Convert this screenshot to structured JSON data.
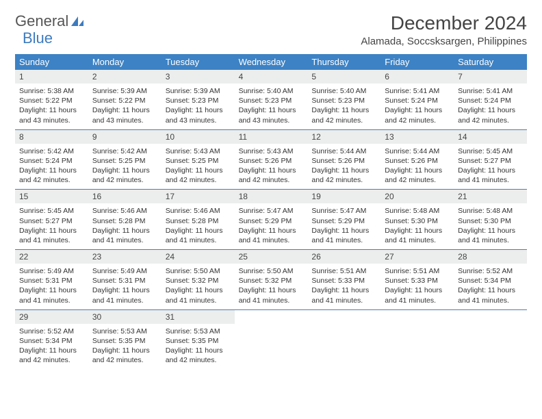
{
  "logo": {
    "word1": "General",
    "word2": "Blue"
  },
  "title": "December 2024",
  "location": "Alamada, Soccsksargen, Philippines",
  "weekday_header_bg": "#3d82c4",
  "weekday_header_fg": "#ffffff",
  "day_num_bg": "#eceded",
  "week_border_color": "#4a7fb0",
  "weekdays": [
    "Sunday",
    "Monday",
    "Tuesday",
    "Wednesday",
    "Thursday",
    "Friday",
    "Saturday"
  ],
  "weeks": [
    [
      {
        "n": "1",
        "sr": "5:38 AM",
        "ss": "5:22 PM",
        "dl": "11 hours and 43 minutes."
      },
      {
        "n": "2",
        "sr": "5:39 AM",
        "ss": "5:22 PM",
        "dl": "11 hours and 43 minutes."
      },
      {
        "n": "3",
        "sr": "5:39 AM",
        "ss": "5:23 PM",
        "dl": "11 hours and 43 minutes."
      },
      {
        "n": "4",
        "sr": "5:40 AM",
        "ss": "5:23 PM",
        "dl": "11 hours and 43 minutes."
      },
      {
        "n": "5",
        "sr": "5:40 AM",
        "ss": "5:23 PM",
        "dl": "11 hours and 42 minutes."
      },
      {
        "n": "6",
        "sr": "5:41 AM",
        "ss": "5:24 PM",
        "dl": "11 hours and 42 minutes."
      },
      {
        "n": "7",
        "sr": "5:41 AM",
        "ss": "5:24 PM",
        "dl": "11 hours and 42 minutes."
      }
    ],
    [
      {
        "n": "8",
        "sr": "5:42 AM",
        "ss": "5:24 PM",
        "dl": "11 hours and 42 minutes."
      },
      {
        "n": "9",
        "sr": "5:42 AM",
        "ss": "5:25 PM",
        "dl": "11 hours and 42 minutes."
      },
      {
        "n": "10",
        "sr": "5:43 AM",
        "ss": "5:25 PM",
        "dl": "11 hours and 42 minutes."
      },
      {
        "n": "11",
        "sr": "5:43 AM",
        "ss": "5:26 PM",
        "dl": "11 hours and 42 minutes."
      },
      {
        "n": "12",
        "sr": "5:44 AM",
        "ss": "5:26 PM",
        "dl": "11 hours and 42 minutes."
      },
      {
        "n": "13",
        "sr": "5:44 AM",
        "ss": "5:26 PM",
        "dl": "11 hours and 42 minutes."
      },
      {
        "n": "14",
        "sr": "5:45 AM",
        "ss": "5:27 PM",
        "dl": "11 hours and 41 minutes."
      }
    ],
    [
      {
        "n": "15",
        "sr": "5:45 AM",
        "ss": "5:27 PM",
        "dl": "11 hours and 41 minutes."
      },
      {
        "n": "16",
        "sr": "5:46 AM",
        "ss": "5:28 PM",
        "dl": "11 hours and 41 minutes."
      },
      {
        "n": "17",
        "sr": "5:46 AM",
        "ss": "5:28 PM",
        "dl": "11 hours and 41 minutes."
      },
      {
        "n": "18",
        "sr": "5:47 AM",
        "ss": "5:29 PM",
        "dl": "11 hours and 41 minutes."
      },
      {
        "n": "19",
        "sr": "5:47 AM",
        "ss": "5:29 PM",
        "dl": "11 hours and 41 minutes."
      },
      {
        "n": "20",
        "sr": "5:48 AM",
        "ss": "5:30 PM",
        "dl": "11 hours and 41 minutes."
      },
      {
        "n": "21",
        "sr": "5:48 AM",
        "ss": "5:30 PM",
        "dl": "11 hours and 41 minutes."
      }
    ],
    [
      {
        "n": "22",
        "sr": "5:49 AM",
        "ss": "5:31 PM",
        "dl": "11 hours and 41 minutes."
      },
      {
        "n": "23",
        "sr": "5:49 AM",
        "ss": "5:31 PM",
        "dl": "11 hours and 41 minutes."
      },
      {
        "n": "24",
        "sr": "5:50 AM",
        "ss": "5:32 PM",
        "dl": "11 hours and 41 minutes."
      },
      {
        "n": "25",
        "sr": "5:50 AM",
        "ss": "5:32 PM",
        "dl": "11 hours and 41 minutes."
      },
      {
        "n": "26",
        "sr": "5:51 AM",
        "ss": "5:33 PM",
        "dl": "11 hours and 41 minutes."
      },
      {
        "n": "27",
        "sr": "5:51 AM",
        "ss": "5:33 PM",
        "dl": "11 hours and 41 minutes."
      },
      {
        "n": "28",
        "sr": "5:52 AM",
        "ss": "5:34 PM",
        "dl": "11 hours and 41 minutes."
      }
    ],
    [
      {
        "n": "29",
        "sr": "5:52 AM",
        "ss": "5:34 PM",
        "dl": "11 hours and 42 minutes."
      },
      {
        "n": "30",
        "sr": "5:53 AM",
        "ss": "5:35 PM",
        "dl": "11 hours and 42 minutes."
      },
      {
        "n": "31",
        "sr": "5:53 AM",
        "ss": "5:35 PM",
        "dl": "11 hours and 42 minutes."
      },
      null,
      null,
      null,
      null
    ]
  ],
  "labels": {
    "sunrise": "Sunrise: ",
    "sunset": "Sunset: ",
    "daylight": "Daylight: "
  }
}
